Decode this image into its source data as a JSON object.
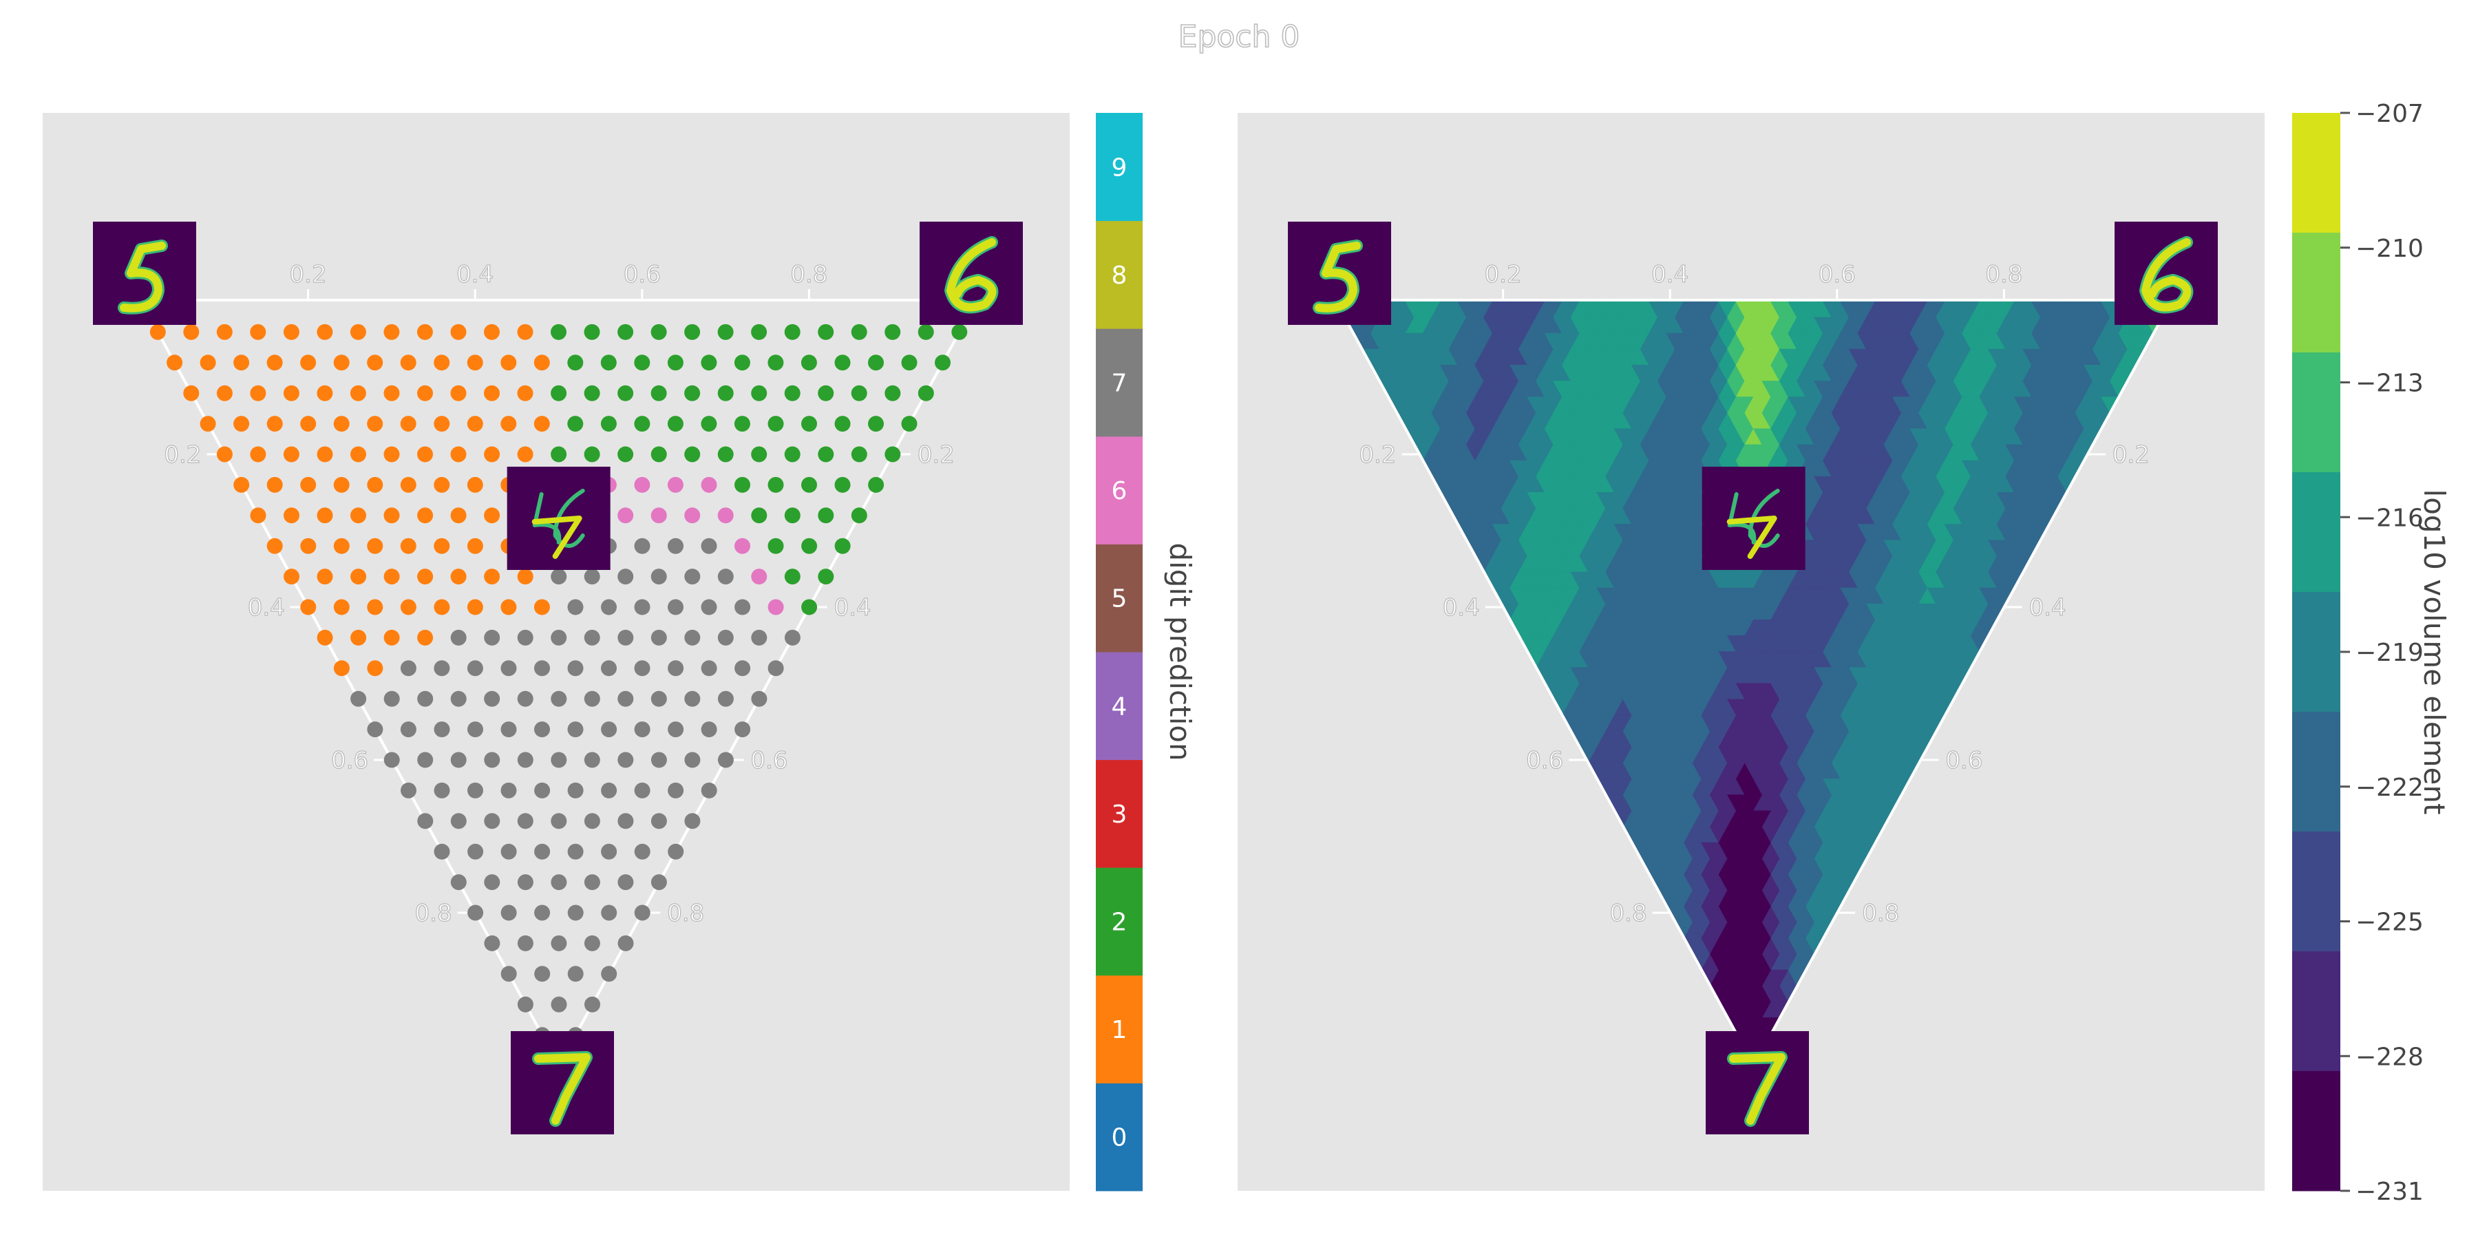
{
  "figure": {
    "title": "Epoch 0"
  },
  "left_panel": {
    "colorbar": {
      "label": "digit prediction",
      "ticks": [
        "0",
        "1",
        "2",
        "3",
        "4",
        "5",
        "6",
        "7",
        "8",
        "9"
      ],
      "colors": [
        "#1f77b4",
        "#ff7f0e",
        "#2ca02c",
        "#d62728",
        "#9467bd",
        "#8c564b",
        "#e377c2",
        "#7f7f7f",
        "#bcbd22",
        "#17becf"
      ]
    },
    "corner_images": {
      "top_left": "digit-5-thumbnail",
      "top_right": "digit-6-thumbnail",
      "bottom": "digit-7-thumbnail",
      "center": "mixed-digit-thumbnail"
    }
  },
  "right_panel": {
    "colorbar": {
      "label": "log10 volume element",
      "ticks": [
        "−207",
        "−210",
        "−213",
        "−216",
        "−219",
        "−222",
        "−225",
        "−228",
        "−231"
      ],
      "colors": [
        "#d8e219",
        "#86d549",
        "#3dbc74",
        "#1f9e89",
        "#26828e",
        "#31688e",
        "#3e4989",
        "#482878",
        "#440154"
      ]
    },
    "corner_images": {
      "top_left": "digit-5-thumbnail",
      "top_right": "digit-6-thumbnail",
      "bottom": "digit-7-thumbnail",
      "center": "mixed-digit-thumbnail"
    }
  },
  "axes": {
    "top_ticks": [
      "0.2",
      "0.4",
      "0.6",
      "0.8"
    ],
    "left_ticks": [
      "0.2",
      "0.4",
      "0.6",
      "0.8"
    ],
    "right_ticks": [
      "0.2",
      "0.4",
      "0.6",
      "0.8"
    ]
  },
  "chart_data": [
    {
      "type": "scatter",
      "subtype": "ternary",
      "corners": {
        "top_left": "5",
        "top_right": "6",
        "bottom": "7"
      },
      "grid_resolution": 25,
      "color_encoding": "predicted digit class",
      "region_rules": [
        {
          "digit": 1,
          "region": "near top-left corner (5), left side of triangle"
        },
        {
          "digit": 2,
          "region": "upper-right area (toward 6)"
        },
        {
          "digit": 6,
          "region": "small band on right, middle height"
        },
        {
          "digit": 7,
          "region": "lower half toward bottom corner (7)"
        }
      ],
      "tick_values": [
        0.2,
        0.4,
        0.6,
        0.8
      ],
      "colorbar": {
        "label": "digit prediction",
        "values": [
          0,
          1,
          2,
          3,
          4,
          5,
          6,
          7,
          8,
          9
        ]
      }
    },
    {
      "type": "heatmap",
      "subtype": "ternary-contour",
      "corners": {
        "top_left": "5",
        "top_right": "6",
        "bottom": "7"
      },
      "value_label": "log10 volume element",
      "range": [
        -231,
        -207
      ],
      "levels": [
        -231,
        -228,
        -225,
        -222,
        -219,
        -216,
        -213,
        -210,
        -207
      ],
      "tick_values": [
        0.2,
        0.4,
        0.6,
        0.8
      ],
      "features": [
        {
          "location": "top-center ridge",
          "level_range": [
            -213,
            -207
          ]
        },
        {
          "location": "vertical band below center toward bottom corner",
          "level_range": [
            -231,
            -225
          ]
        },
        {
          "location": "rest of simplex",
          "level_range": [
            -225,
            -213
          ]
        }
      ]
    }
  ]
}
